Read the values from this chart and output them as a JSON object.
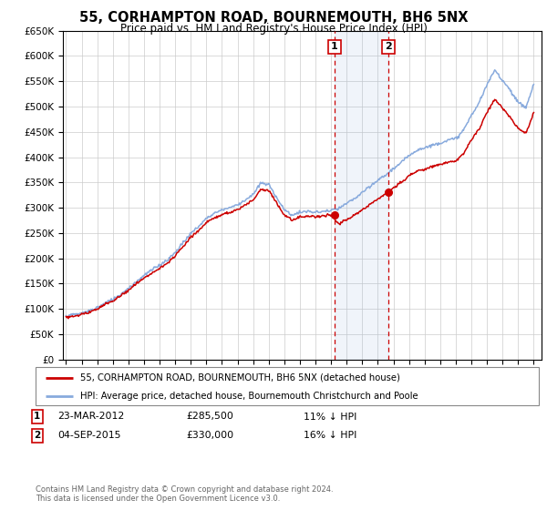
{
  "title": "55, CORHAMPTON ROAD, BOURNEMOUTH, BH6 5NX",
  "subtitle": "Price paid vs. HM Land Registry's House Price Index (HPI)",
  "legend_line1": "55, CORHAMPTON ROAD, BOURNEMOUTH, BH6 5NX (detached house)",
  "legend_line2": "HPI: Average price, detached house, Bournemouth Christchurch and Poole",
  "footer1": "Contains HM Land Registry data © Crown copyright and database right 2024.",
  "footer2": "This data is licensed under the Open Government Licence v3.0.",
  "annotation1": {
    "label": "1",
    "date_str": "23-MAR-2012",
    "price": 285500,
    "note": "11% ↓ HPI",
    "year": 2012.22
  },
  "annotation2": {
    "label": "2",
    "date_str": "04-SEP-2015",
    "price": 330000,
    "note": "16% ↓ HPI",
    "year": 2015.67
  },
  "red_color": "#cc0000",
  "blue_color": "#88aadd",
  "background_color": "#ffffff",
  "grid_color": "#cccccc",
  "ylim": [
    0,
    650000
  ],
  "xlim_start": 1994.8,
  "xlim_end": 2025.5
}
